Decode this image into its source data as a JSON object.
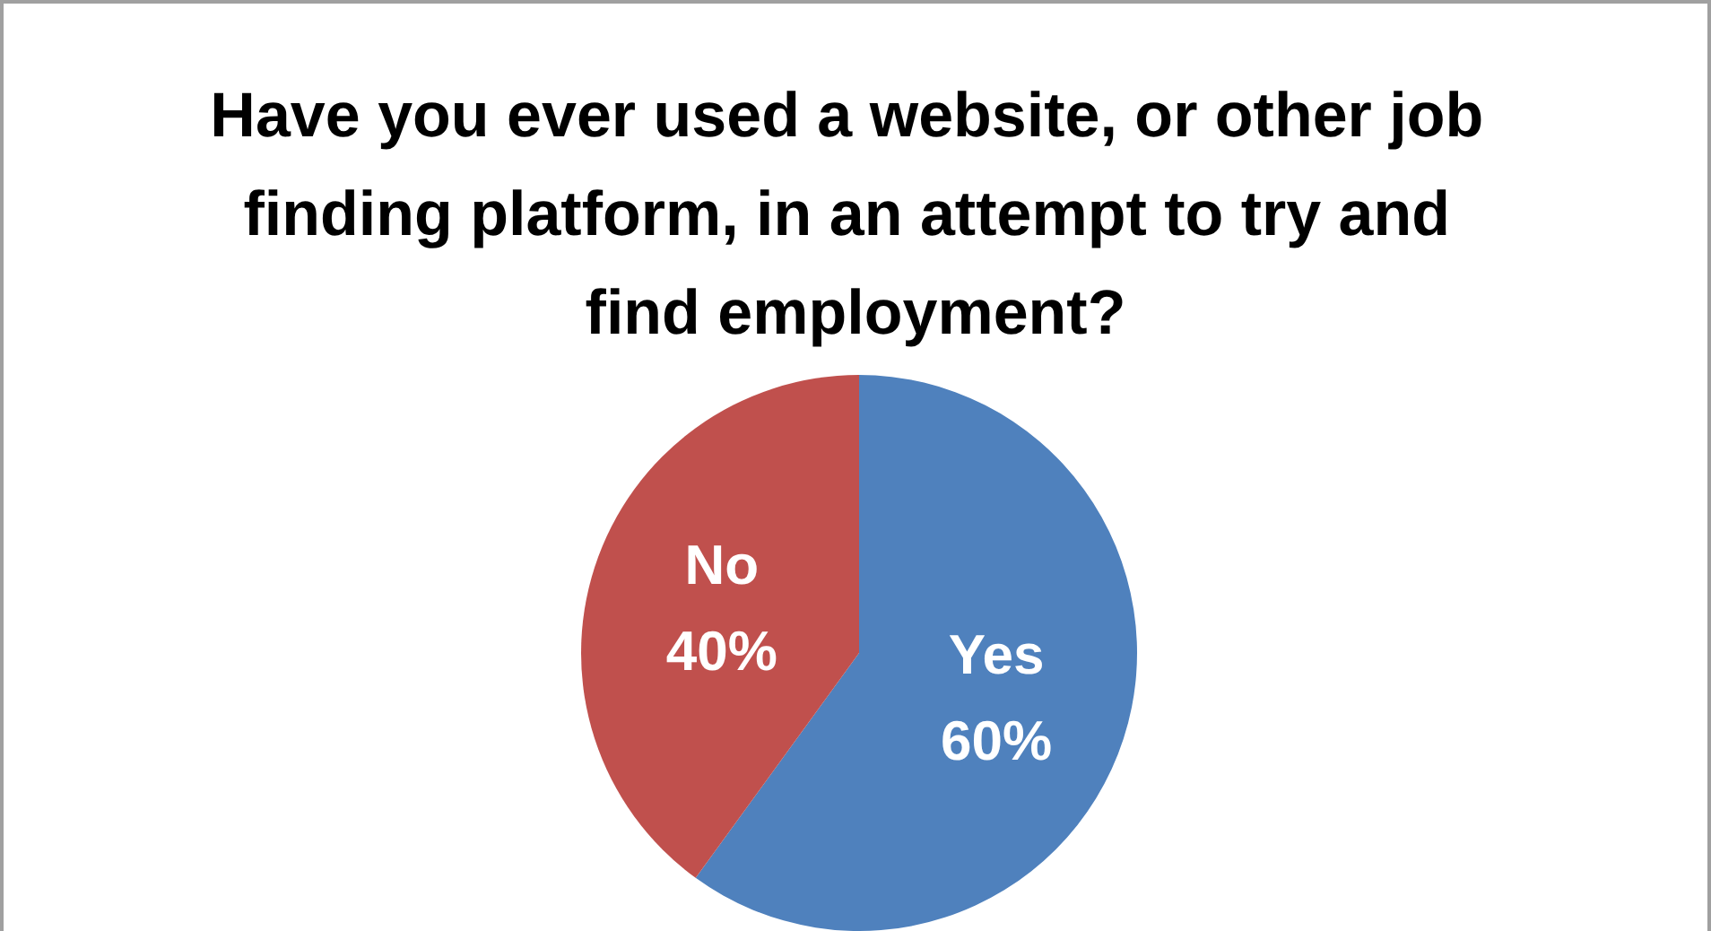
{
  "chart_data": {
    "type": "pie",
    "title": "Have you ever used a website, or other job finding platform, in an attempt to try and find employment?",
    "categories": [
      "Yes",
      "No"
    ],
    "values": [
      60,
      40
    ],
    "colors": [
      "#4f81bd",
      "#c0504d"
    ],
    "value_labels": [
      "60%",
      "40%"
    ],
    "legend": false
  }
}
